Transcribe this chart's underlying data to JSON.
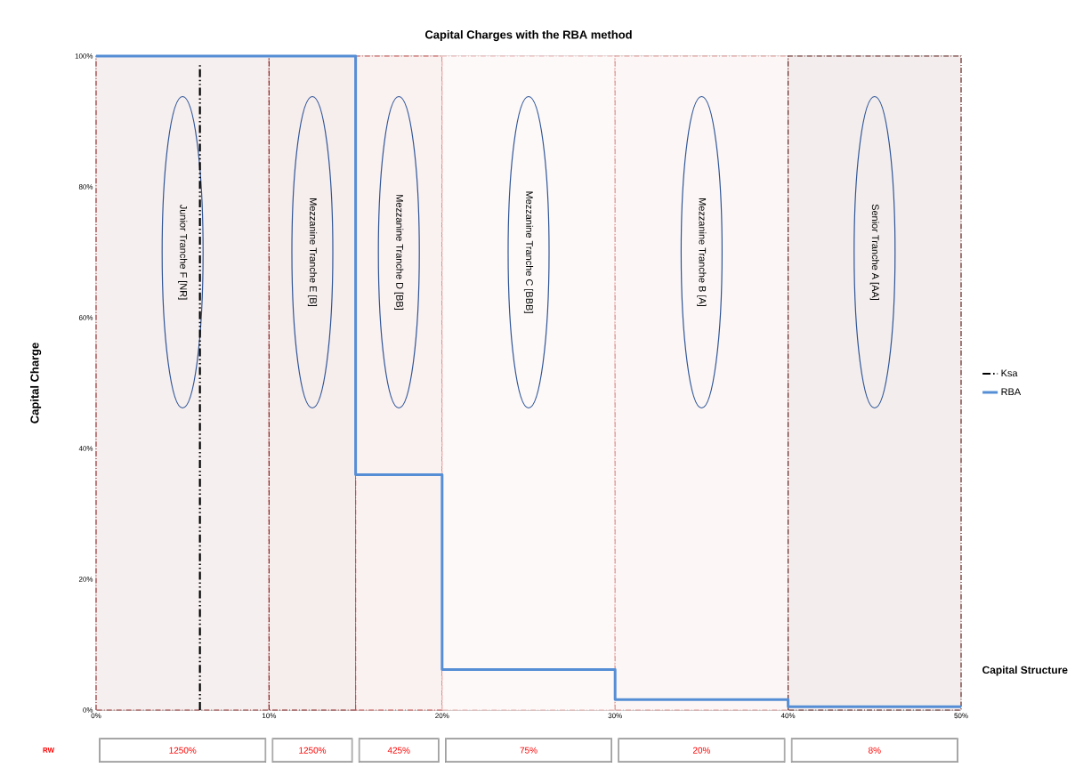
{
  "chart_data": {
    "type": "line",
    "title": "Capital Charges with the RBA method",
    "xlabel": "Capital Structure",
    "ylabel": "Capital Charge",
    "xlim": [
      0,
      50
    ],
    "ylim": [
      0,
      100
    ],
    "xticks": [
      {
        "value": 0,
        "label": "0%"
      },
      {
        "value": 10,
        "label": "10%"
      },
      {
        "value": 20,
        "label": "20%"
      },
      {
        "value": 30,
        "label": "30%"
      },
      {
        "value": 40,
        "label": "40%"
      },
      {
        "value": 50,
        "label": "50%"
      }
    ],
    "yticks": [
      {
        "value": 0,
        "label": "0%"
      },
      {
        "value": 20,
        "label": "20%"
      },
      {
        "value": 40,
        "label": "40%"
      },
      {
        "value": 60,
        "label": "60%"
      },
      {
        "value": 80,
        "label": "80%"
      },
      {
        "value": 100,
        "label": "100%"
      }
    ],
    "grid": "y",
    "legend": "right",
    "series": [
      {
        "name": "Ksa",
        "color": "#000000",
        "line_style": "dashed",
        "x": [
          6,
          6
        ],
        "values": [
          0,
          99
        ]
      },
      {
        "name": "RBA",
        "type": "step",
        "color": "#558ed5",
        "line_style": "solid",
        "x": [
          0,
          15,
          20,
          30,
          40,
          50
        ],
        "values": [
          100,
          36,
          6.2,
          1.6,
          0.5,
          0.5
        ]
      }
    ],
    "bands": [
      {
        "axis": "x",
        "from": 0,
        "to": 10,
        "label": "Junior Tranche F [NR]",
        "color": "#943634"
      },
      {
        "axis": "x",
        "from": 10,
        "to": 15,
        "label": "Mezzanine Tranche E [B]",
        "color": "#8b2323"
      },
      {
        "axis": "x",
        "from": 15,
        "to": 20,
        "label": "Mezzanine Tranche D [BB]",
        "color": "#c0504d"
      },
      {
        "axis": "x",
        "from": 20,
        "to": 30,
        "label": "Mezzanine Tranche C [BBB]",
        "color": "#e6b0ae"
      },
      {
        "axis": "x",
        "from": 30,
        "to": 40,
        "label": "Mezzanine Tranche B [A]",
        "color": "#d99694"
      },
      {
        "axis": "x",
        "from": 40,
        "to": 50,
        "label": "Senior Tranche A [AA]",
        "color": "#632523"
      }
    ],
    "annotations": [
      "RW",
      "1250%",
      "1250%",
      "425%",
      "75%",
      "20%",
      "8%"
    ]
  }
}
